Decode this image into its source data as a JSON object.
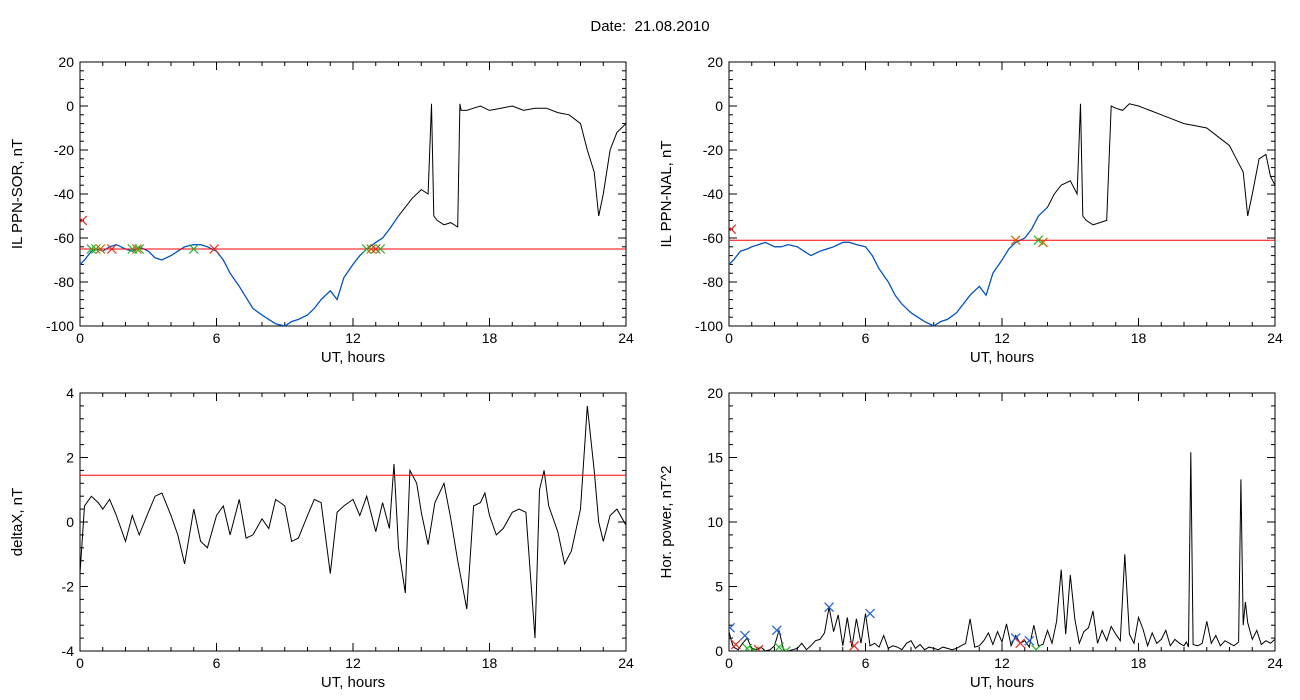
{
  "page": {
    "title": "Date:  21.08.2010"
  },
  "colors": {
    "line": "#000000",
    "threshold": "#ff0000",
    "fill_trace": "#0057c8",
    "marker_red": "#e8281e",
    "marker_green": "#22b422",
    "marker_blue": "#1f5fd2",
    "marker_orange": "#c86400"
  },
  "chart_data": [
    {
      "id": "panel-sor",
      "type": "line",
      "title": "",
      "xlabel": "UT, hours",
      "ylabel": "IL PPN-SOR, nT",
      "xlim": [
        0,
        24
      ],
      "ylim": [
        -100,
        20
      ],
      "xticks": [
        0,
        6,
        12,
        18,
        24
      ],
      "yticks": [
        -100,
        -80,
        -60,
        -40,
        -20,
        0,
        20
      ],
      "threshold": -65,
      "series": [
        {
          "x": [
            0,
            0.2,
            0.5,
            0.8,
            1.0,
            1.3,
            1.6,
            2.0,
            2.3,
            2.6,
            3.0,
            3.3,
            3.6,
            4.0,
            4.3,
            4.6,
            5.0,
            5.3,
            5.6,
            6.0,
            6.3,
            6.6,
            7.0,
            7.3,
            7.6,
            8.0,
            8.3,
            8.6,
            9.0,
            9.3,
            9.6,
            10.0,
            10.3,
            10.6,
            11.0,
            11.3,
            11.6,
            12.0,
            12.3,
            12.6,
            13.0,
            13.3,
            13.6,
            14.0,
            14.3,
            14.6,
            15.0,
            15.3,
            15.45,
            15.55,
            15.7,
            16.0,
            16.3,
            16.6,
            16.7,
            16.75,
            17.0,
            17.3,
            17.6,
            18.0,
            18.5,
            19.0,
            19.5,
            20.0,
            20.5,
            21.0,
            21.5,
            22.0,
            22.3,
            22.6,
            22.8,
            23.0,
            23.3,
            23.6,
            23.8,
            24.0
          ],
          "values": [
            -72,
            -70,
            -66,
            -65,
            -66,
            -64,
            -63,
            -65,
            -66,
            -64,
            -66,
            -69,
            -70,
            -68,
            -66,
            -64,
            -63,
            -63,
            -64,
            -66,
            -70,
            -76,
            -82,
            -87,
            -92,
            -95,
            -97,
            -99,
            -100,
            -98,
            -97,
            -95,
            -92,
            -88,
            -84,
            -88,
            -78,
            -72,
            -68,
            -65,
            -62,
            -60,
            -56,
            -50,
            -46,
            -42,
            -38,
            -40,
            1,
            -50,
            -52,
            -54,
            -53,
            -55,
            1,
            -2,
            -2,
            -1,
            0,
            -2,
            -1,
            0,
            -2,
            -1,
            -1,
            -3,
            -4,
            -8,
            -20,
            -30,
            -50,
            -40,
            -20,
            -12,
            -10,
            -8
          ]
        }
      ],
      "markers": [
        {
          "x": 0.1,
          "y": -52,
          "color": "red"
        },
        {
          "x": 0.5,
          "y": -65,
          "color": "green"
        },
        {
          "x": 0.7,
          "y": -65,
          "color": "green"
        },
        {
          "x": 0.9,
          "y": -65,
          "color": "orange"
        },
        {
          "x": 1.4,
          "y": -65,
          "color": "red"
        },
        {
          "x": 2.3,
          "y": -65,
          "color": "green"
        },
        {
          "x": 2.5,
          "y": -65,
          "color": "orange"
        },
        {
          "x": 2.6,
          "y": -65,
          "color": "green"
        },
        {
          "x": 5.0,
          "y": -65,
          "color": "green"
        },
        {
          "x": 5.9,
          "y": -65,
          "color": "red"
        },
        {
          "x": 12.6,
          "y": -65,
          "color": "green"
        },
        {
          "x": 12.8,
          "y": -65,
          "color": "orange"
        },
        {
          "x": 13.0,
          "y": -65,
          "color": "red"
        },
        {
          "x": 13.2,
          "y": -65,
          "color": "green"
        }
      ]
    },
    {
      "id": "panel-nal",
      "type": "line",
      "title": "",
      "xlabel": "UT, hours",
      "ylabel": "IL PPN-NAL, nT",
      "xlim": [
        0,
        24
      ],
      "ylim": [
        -100,
        20
      ],
      "xticks": [
        0,
        6,
        12,
        18,
        24
      ],
      "yticks": [
        -100,
        -80,
        -60,
        -40,
        -20,
        0,
        20
      ],
      "threshold": -61,
      "series": [
        {
          "x": [
            0,
            0.2,
            0.5,
            0.8,
            1.0,
            1.3,
            1.6,
            2.0,
            2.3,
            2.6,
            3.0,
            3.3,
            3.6,
            4.0,
            4.3,
            4.6,
            5.0,
            5.3,
            5.6,
            6.0,
            6.3,
            6.6,
            7.0,
            7.3,
            7.6,
            8.0,
            8.3,
            8.6,
            9.0,
            9.3,
            9.6,
            10.0,
            10.3,
            10.6,
            11.0,
            11.3,
            11.6,
            12.0,
            12.3,
            12.6,
            13.0,
            13.3,
            13.6,
            14.0,
            14.3,
            14.6,
            15.0,
            15.3,
            15.45,
            15.55,
            15.7,
            16.0,
            16.3,
            16.6,
            16.8,
            17.0,
            17.3,
            17.6,
            18.0,
            18.5,
            19.0,
            19.5,
            20.0,
            20.5,
            21.0,
            21.5,
            22.0,
            22.3,
            22.6,
            22.8,
            23.0,
            23.3,
            23.6,
            23.8,
            24.0
          ],
          "values": [
            -72,
            -70,
            -66,
            -65,
            -64,
            -63,
            -62,
            -64,
            -64,
            -63,
            -64,
            -66,
            -68,
            -66,
            -65,
            -64,
            -62,
            -62,
            -63,
            -64,
            -68,
            -74,
            -80,
            -86,
            -90,
            -94,
            -96,
            -98,
            -100,
            -98,
            -97,
            -94,
            -90,
            -86,
            -82,
            -86,
            -76,
            -70,
            -65,
            -62,
            -60,
            -56,
            -50,
            -46,
            -40,
            -36,
            -34,
            -40,
            1,
            -50,
            -52,
            -54,
            -53,
            -52,
            0,
            -1,
            -2,
            1,
            0,
            -2,
            -4,
            -6,
            -8,
            -9,
            -10,
            -14,
            -18,
            -24,
            -30,
            -50,
            -40,
            -24,
            -22,
            -32,
            -36
          ]
        }
      ],
      "markers": [
        {
          "x": 0.1,
          "y": -56,
          "color": "red"
        },
        {
          "x": 12.6,
          "y": -61,
          "color": "orange"
        },
        {
          "x": 13.6,
          "y": -61,
          "color": "green"
        },
        {
          "x": 13.8,
          "y": -62,
          "color": "orange"
        }
      ]
    },
    {
      "id": "panel-deltax",
      "type": "line",
      "title": "",
      "xlabel": "UT, hours",
      "ylabel": "deltaX, nT",
      "xlim": [
        0,
        24
      ],
      "ylim": [
        -4,
        4
      ],
      "xticks": [
        0,
        6,
        12,
        18,
        24
      ],
      "yticks": [
        -4,
        -2,
        0,
        2,
        4
      ],
      "threshold": 1.45,
      "series": [
        {
          "x": [
            0,
            0.2,
            0.5,
            0.8,
            1.0,
            1.3,
            1.6,
            2.0,
            2.3,
            2.6,
            3.0,
            3.3,
            3.6,
            4.0,
            4.3,
            4.6,
            5.0,
            5.3,
            5.6,
            6.0,
            6.3,
            6.6,
            7.0,
            7.3,
            7.6,
            8.0,
            8.3,
            8.6,
            9.0,
            9.3,
            9.6,
            10.0,
            10.3,
            10.6,
            11.0,
            11.3,
            11.6,
            12.0,
            12.3,
            12.6,
            13.0,
            13.3,
            13.6,
            13.8,
            14.0,
            14.3,
            14.5,
            14.8,
            15.0,
            15.3,
            15.6,
            16.0,
            16.3,
            16.6,
            17.0,
            17.3,
            17.6,
            17.8,
            18.0,
            18.3,
            18.6,
            19.0,
            19.3,
            19.6,
            20.0,
            20.2,
            20.4,
            20.6,
            21.0,
            21.3,
            21.6,
            22.0,
            22.3,
            22.6,
            22.8,
            23.0,
            23.3,
            23.6,
            24.0
          ],
          "values": [
            -1.6,
            0.5,
            0.8,
            0.6,
            0.4,
            0.7,
            0.2,
            -0.6,
            0.2,
            -0.4,
            0.3,
            0.8,
            0.9,
            0.2,
            -0.4,
            -1.3,
            0.4,
            -0.6,
            -0.8,
            0.2,
            0.5,
            -0.4,
            0.7,
            -0.5,
            -0.4,
            0.1,
            -0.2,
            0.7,
            0.5,
            -0.6,
            -0.5,
            0.2,
            0.7,
            0.6,
            -1.6,
            0.3,
            0.5,
            0.7,
            0.2,
            0.8,
            -0.3,
            0.6,
            -0.2,
            1.8,
            -0.8,
            -2.2,
            1.6,
            1.2,
            0.3,
            -0.7,
            0.6,
            1.2,
            0.1,
            -1.2,
            -2.7,
            0.5,
            0.6,
            0.9,
            0.2,
            -0.4,
            -0.2,
            0.3,
            0.4,
            0.3,
            -3.6,
            1.0,
            1.6,
            0.5,
            -0.3,
            -1.3,
            -0.9,
            0.4,
            3.6,
            1.6,
            0.0,
            -0.6,
            0.2,
            0.4,
            -0.1
          ]
        }
      ]
    },
    {
      "id": "panel-power",
      "type": "line",
      "title": "",
      "xlabel": "UT, hours",
      "ylabel": "Hor. power, nT^2",
      "xlim": [
        0,
        24
      ],
      "ylim": [
        0,
        20
      ],
      "xticks": [
        0,
        6,
        12,
        18,
        24
      ],
      "yticks": [
        0,
        5,
        10,
        15,
        20
      ],
      "series": [
        {
          "x": [
            0,
            0.1,
            0.2,
            0.4,
            0.6,
            0.8,
            1.0,
            1.2,
            1.4,
            1.6,
            1.8,
            2.0,
            2.2,
            2.4,
            2.6,
            2.8,
            3.0,
            3.2,
            3.4,
            3.6,
            3.8,
            4.0,
            4.2,
            4.4,
            4.6,
            4.8,
            5.0,
            5.2,
            5.4,
            5.6,
            5.8,
            6.0,
            6.2,
            6.4,
            6.6,
            6.8,
            7.0,
            7.2,
            7.4,
            7.6,
            7.8,
            8.0,
            8.2,
            8.4,
            8.6,
            8.8,
            9.0,
            9.2,
            9.4,
            9.6,
            9.8,
            10.0,
            10.2,
            10.4,
            10.6,
            10.8,
            11.0,
            11.2,
            11.4,
            11.6,
            11.8,
            12.0,
            12.2,
            12.4,
            12.6,
            12.8,
            13.0,
            13.2,
            13.4,
            13.6,
            13.8,
            14.0,
            14.2,
            14.4,
            14.6,
            14.8,
            15.0,
            15.2,
            15.4,
            15.6,
            15.8,
            16.0,
            16.2,
            16.4,
            16.6,
            16.8,
            17.0,
            17.2,
            17.4,
            17.6,
            17.8,
            18.0,
            18.2,
            18.4,
            18.6,
            18.8,
            19.0,
            19.2,
            19.4,
            19.6,
            19.8,
            20.0,
            20.1,
            20.2,
            20.3,
            20.4,
            20.6,
            20.8,
            21.0,
            21.2,
            21.4,
            21.6,
            21.8,
            22.0,
            22.2,
            22.4,
            22.5,
            22.6,
            22.7,
            22.8,
            23.0,
            23.2,
            23.4,
            23.6,
            23.8,
            24.0
          ],
          "values": [
            1.5,
            0.8,
            0.3,
            0.1,
            0.6,
            1.0,
            0.2,
            0.1,
            0.3,
            0.0,
            0.1,
            0.4,
            1.6,
            0.1,
            0.0,
            0.1,
            0.2,
            0.6,
            0.1,
            0.4,
            0.8,
            0.9,
            1.4,
            3.4,
            1.5,
            2.8,
            0.4,
            2.6,
            0.3,
            2.5,
            0.6,
            2.9,
            0.4,
            0.6,
            0.3,
            1.2,
            0.2,
            0.4,
            0.3,
            0.1,
            0.6,
            0.8,
            0.2,
            0.5,
            0.1,
            0.3,
            0.2,
            0.1,
            0.3,
            0.2,
            0.1,
            0.2,
            0.4,
            0.6,
            2.5,
            0.3,
            0.4,
            0.8,
            1.4,
            0.5,
            1.5,
            0.7,
            2.1,
            0.4,
            1.2,
            0.6,
            0.8,
            0.3,
            2.0,
            0.4,
            0.5,
            1.6,
            0.6,
            2.3,
            6.3,
            1.3,
            5.9,
            2.5,
            0.6,
            1.5,
            1.8,
            3.1,
            0.6,
            1.6,
            0.8,
            1.9,
            1.3,
            0.8,
            7.5,
            1.3,
            0.6,
            2.6,
            1.7,
            0.4,
            1.4,
            0.6,
            0.9,
            1.6,
            0.4,
            0.9,
            0.6,
            0.4,
            0.7,
            0.3,
            15.4,
            0.5,
            0.4,
            0.6,
            2.3,
            0.6,
            1.2,
            0.4,
            0.8,
            0.6,
            0.4,
            0.7,
            13.3,
            2.0,
            3.8,
            2.2,
            0.9,
            1.6,
            0.5,
            0.8,
            0.6,
            0.9
          ]
        }
      ],
      "markers": [
        {
          "x": 0.05,
          "y": 1.8,
          "color": "blue"
        },
        {
          "x": 0.3,
          "y": 0.5,
          "color": "red"
        },
        {
          "x": 0.7,
          "y": 1.2,
          "color": "blue"
        },
        {
          "x": 0.8,
          "y": 0.2,
          "color": "green"
        },
        {
          "x": 1.1,
          "y": 0.0,
          "color": "green"
        },
        {
          "x": 1.3,
          "y": 0.1,
          "color": "red"
        },
        {
          "x": 2.1,
          "y": 1.6,
          "color": "blue"
        },
        {
          "x": 2.2,
          "y": 0.3,
          "color": "green"
        },
        {
          "x": 2.5,
          "y": 0.0,
          "color": "green"
        },
        {
          "x": 4.4,
          "y": 3.4,
          "color": "blue"
        },
        {
          "x": 5.5,
          "y": 0.4,
          "color": "red"
        },
        {
          "x": 6.2,
          "y": 2.9,
          "color": "blue"
        },
        {
          "x": 12.6,
          "y": 1.0,
          "color": "blue"
        },
        {
          "x": 12.8,
          "y": 0.6,
          "color": "red"
        },
        {
          "x": 13.2,
          "y": 0.8,
          "color": "blue"
        },
        {
          "x": 13.5,
          "y": 0.1,
          "color": "green"
        }
      ]
    }
  ]
}
